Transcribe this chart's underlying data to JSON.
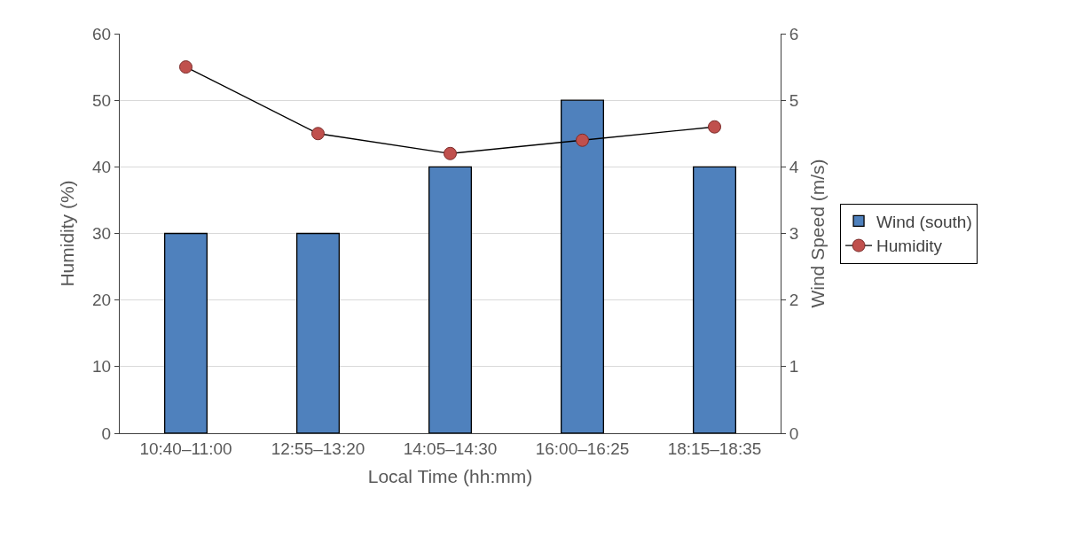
{
  "chart_data": {
    "type": "bar",
    "xlabel": "Local Time (hh:mm)",
    "ylabel": "Humidity (%)",
    "y2label": "Wind Speed (m/s)",
    "categories": [
      "10:40–11:00",
      "12:55–13:20",
      "14:05–14:30",
      "16:00–16:25",
      "18:15–18:35"
    ],
    "series": [
      {
        "name": "Wind (south)",
        "axis": "y2",
        "color": "#4f81bd",
        "values": [
          3,
          3,
          4,
          5,
          4
        ]
      },
      {
        "name": "Humidity",
        "type": "line",
        "color": "#c0504d",
        "marker": "circle",
        "values": [
          55,
          45,
          42,
          44,
          46
        ]
      }
    ],
    "ylim": [
      0,
      60
    ],
    "yticks": [
      0,
      10,
      20,
      30,
      40,
      50,
      60
    ],
    "y2lim": [
      0,
      6
    ],
    "y2ticks": [
      0,
      1,
      2,
      3,
      4,
      5,
      6
    ],
    "grid": "y",
    "legend": "right"
  }
}
